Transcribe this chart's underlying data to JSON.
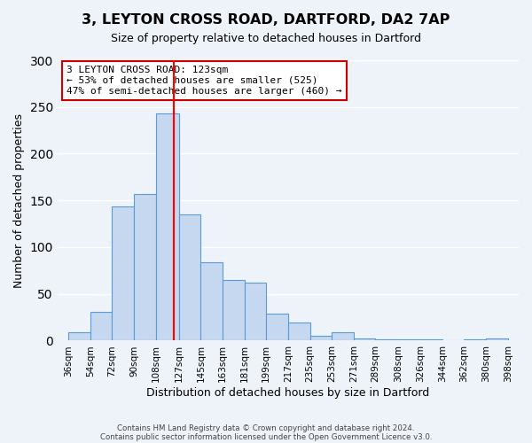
{
  "title": "3, LEYTON CROSS ROAD, DARTFORD, DA2 7AP",
  "subtitle": "Size of property relative to detached houses in Dartford",
  "xlabel": "Distribution of detached houses by size in Dartford",
  "ylabel": "Number of detached properties",
  "bar_color": "#c5d8f0",
  "bar_edge_color": "#5b9bd5",
  "background_color": "#eef2f9",
  "grid_color": "#ffffff",
  "bin_edges": [
    36,
    54,
    72,
    90,
    108,
    127,
    145,
    163,
    181,
    199,
    217,
    235,
    253,
    271,
    289,
    308,
    326,
    344,
    362,
    380,
    398
  ],
  "bin_labels": [
    "36sqm",
    "54sqm",
    "72sqm",
    "90sqm",
    "108sqm",
    "127sqm",
    "145sqm",
    "163sqm",
    "181sqm",
    "199sqm",
    "217sqm",
    "235sqm",
    "253sqm",
    "271sqm",
    "289sqm",
    "308sqm",
    "326sqm",
    "344sqm",
    "362sqm",
    "380sqm",
    "398sqm"
  ],
  "heights": [
    9,
    31,
    144,
    157,
    243,
    135,
    84,
    65,
    62,
    29,
    19,
    5,
    9,
    2,
    1,
    1,
    1,
    0,
    1,
    2
  ],
  "red_line_x": 123,
  "ylim": [
    0,
    300
  ],
  "yticks": [
    0,
    50,
    100,
    150,
    200,
    250,
    300
  ],
  "annotation_text": "3 LEYTON CROSS ROAD: 123sqm\n← 53% of detached houses are smaller (525)\n47% of semi-detached houses are larger (460) →",
  "annotation_box_color": "#ffffff",
  "annotation_box_edge": "#cc0000",
  "footer1": "Contains HM Land Registry data © Crown copyright and database right 2024.",
  "footer2": "Contains public sector information licensed under the Open Government Licence v3.0."
}
